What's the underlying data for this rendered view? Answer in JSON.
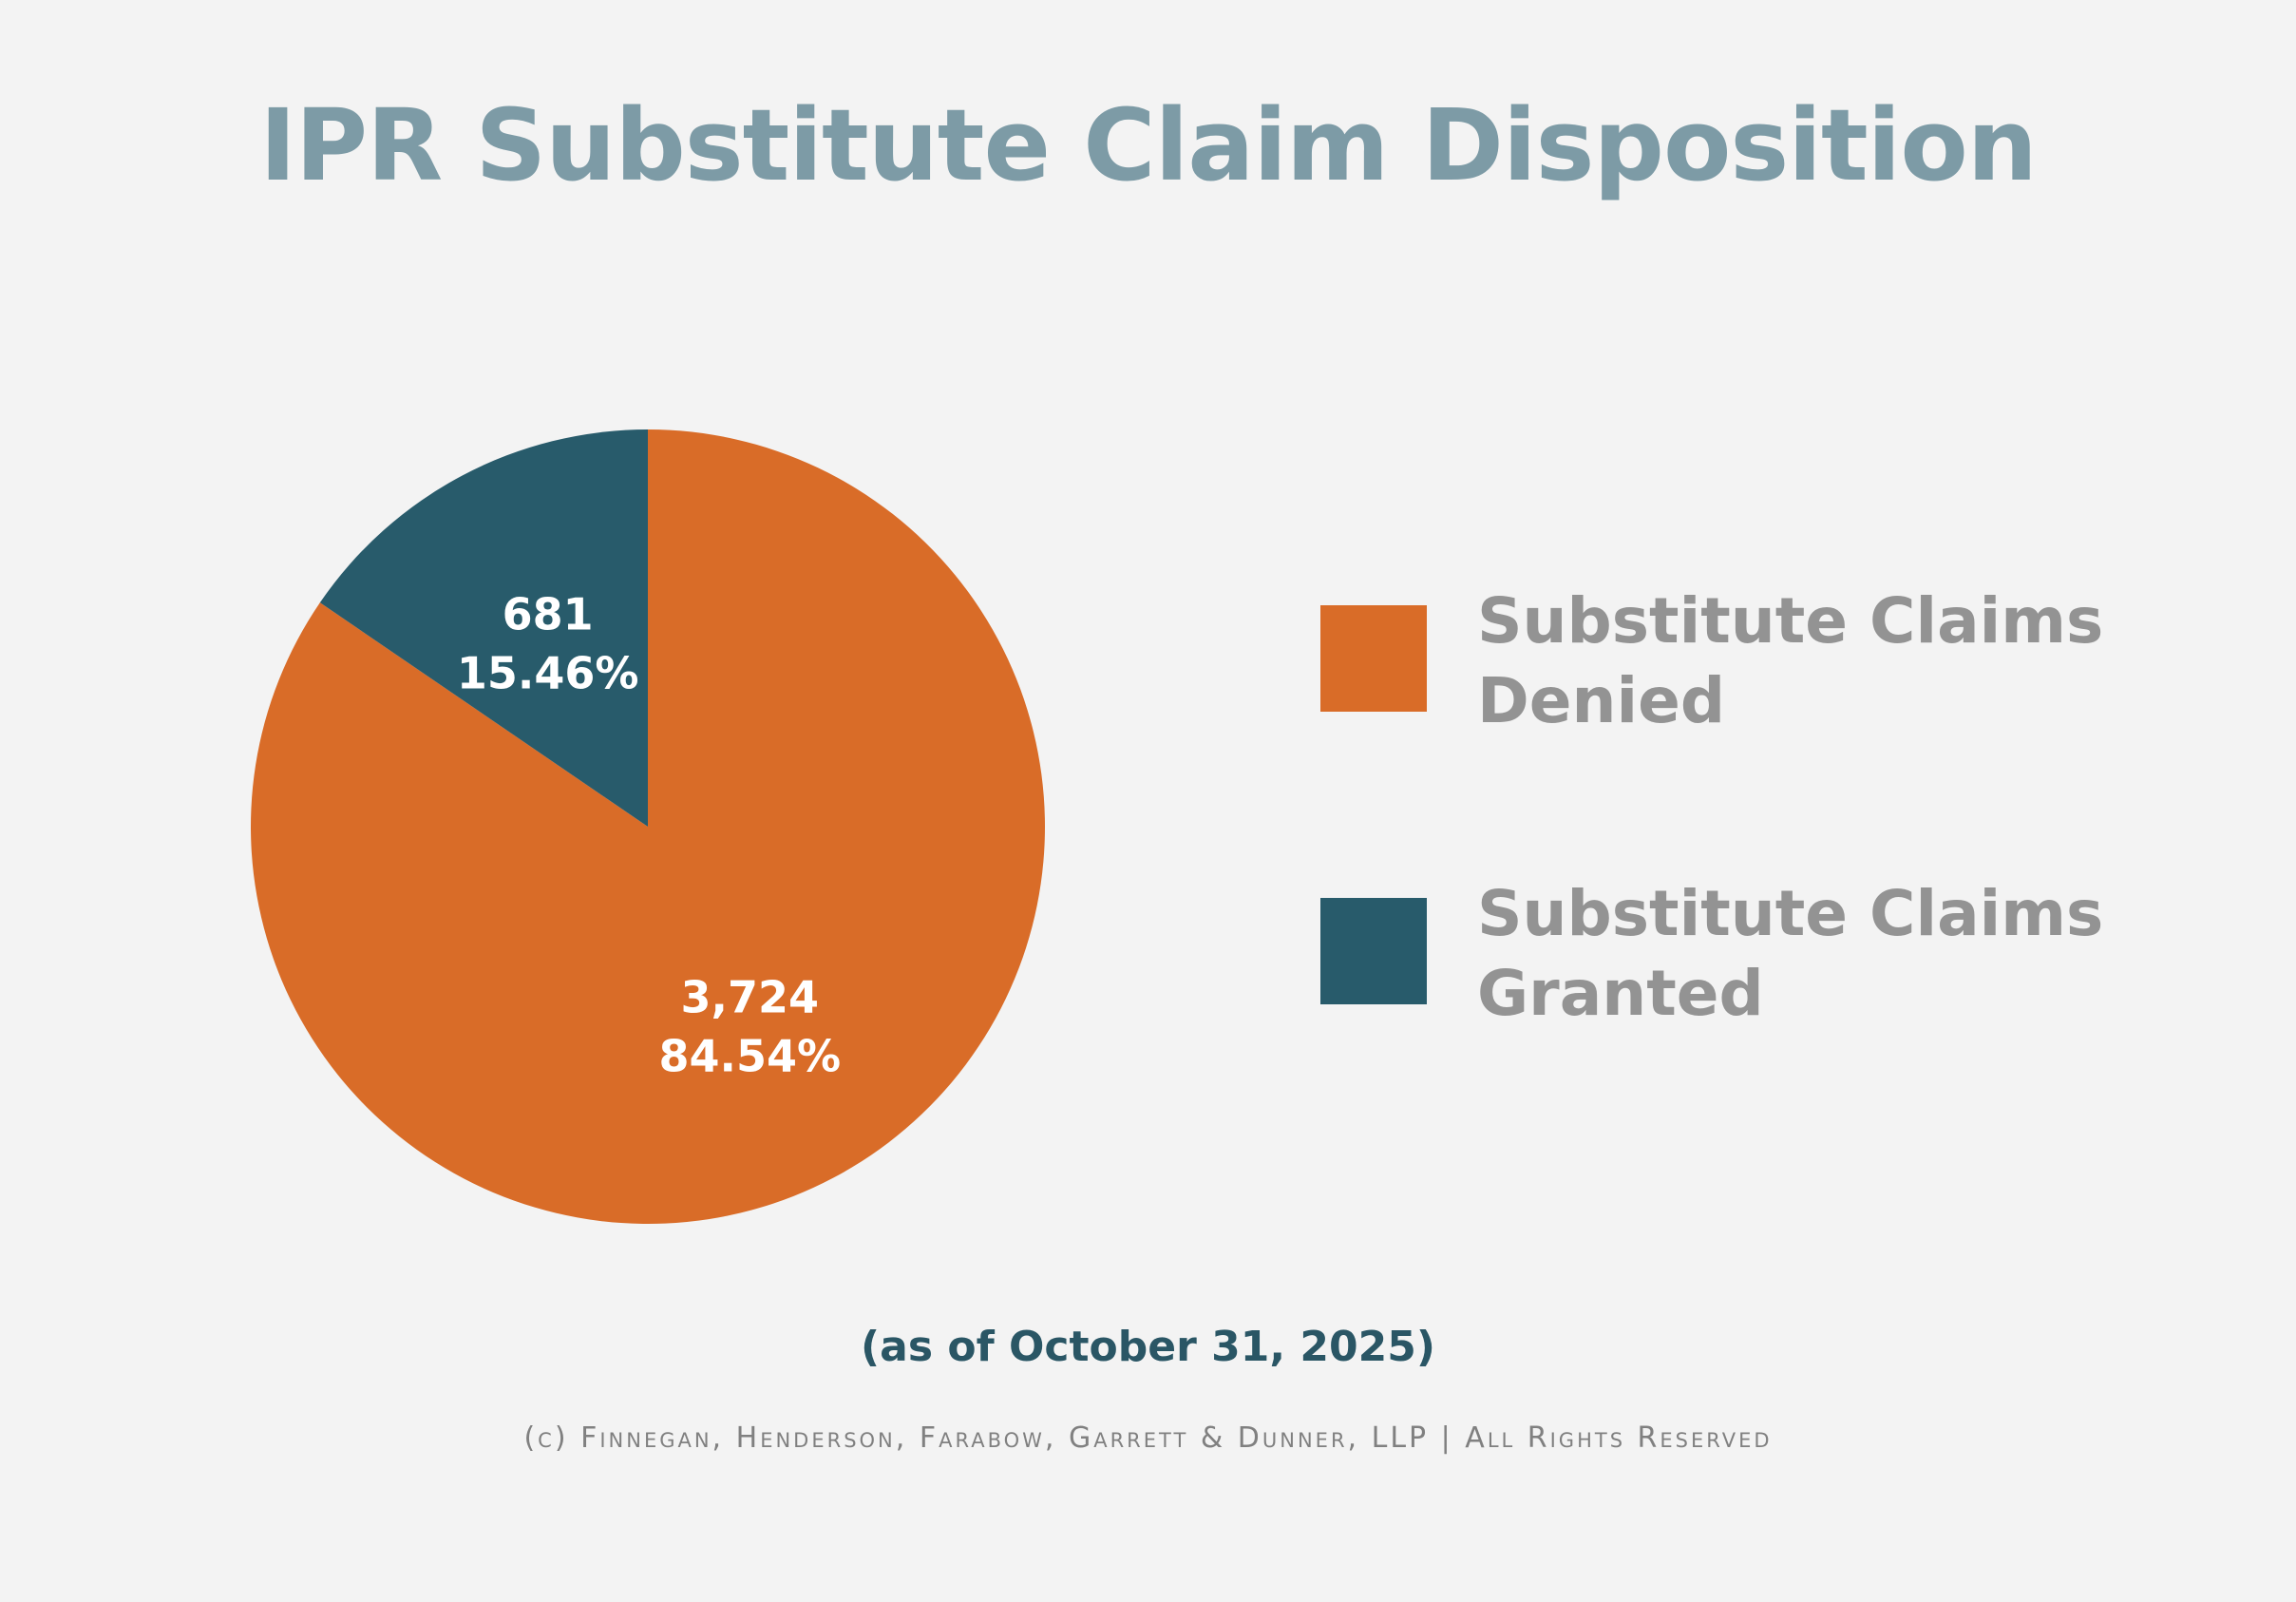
{
  "chart_data": {
    "type": "pie",
    "title": "IPR Substitute Claim Disposition",
    "slices": [
      {
        "name": "Substitute Claims Denied",
        "value": 3724,
        "value_label": "3,724",
        "percent_label": "84.54%",
        "color": "#d96c28"
      },
      {
        "name": "Substitute Claims Granted",
        "value": 681,
        "value_label": "681",
        "percent_label": "15.46%",
        "color": "#285b6b"
      }
    ],
    "legend": {
      "placement": "right",
      "items": [
        {
          "line1": "Substitute Claims",
          "line2": "Denied",
          "color": "#d96c28"
        },
        {
          "line1": "Substitute Claims",
          "line2": "Granted",
          "color": "#285b6b"
        }
      ]
    }
  },
  "footer": {
    "note": "(as of October 31, 2025)",
    "copyright": "(c) Finnegan, Henderson, Farabow, Garrett & Dunner, LLP | All Rights Reserved"
  }
}
